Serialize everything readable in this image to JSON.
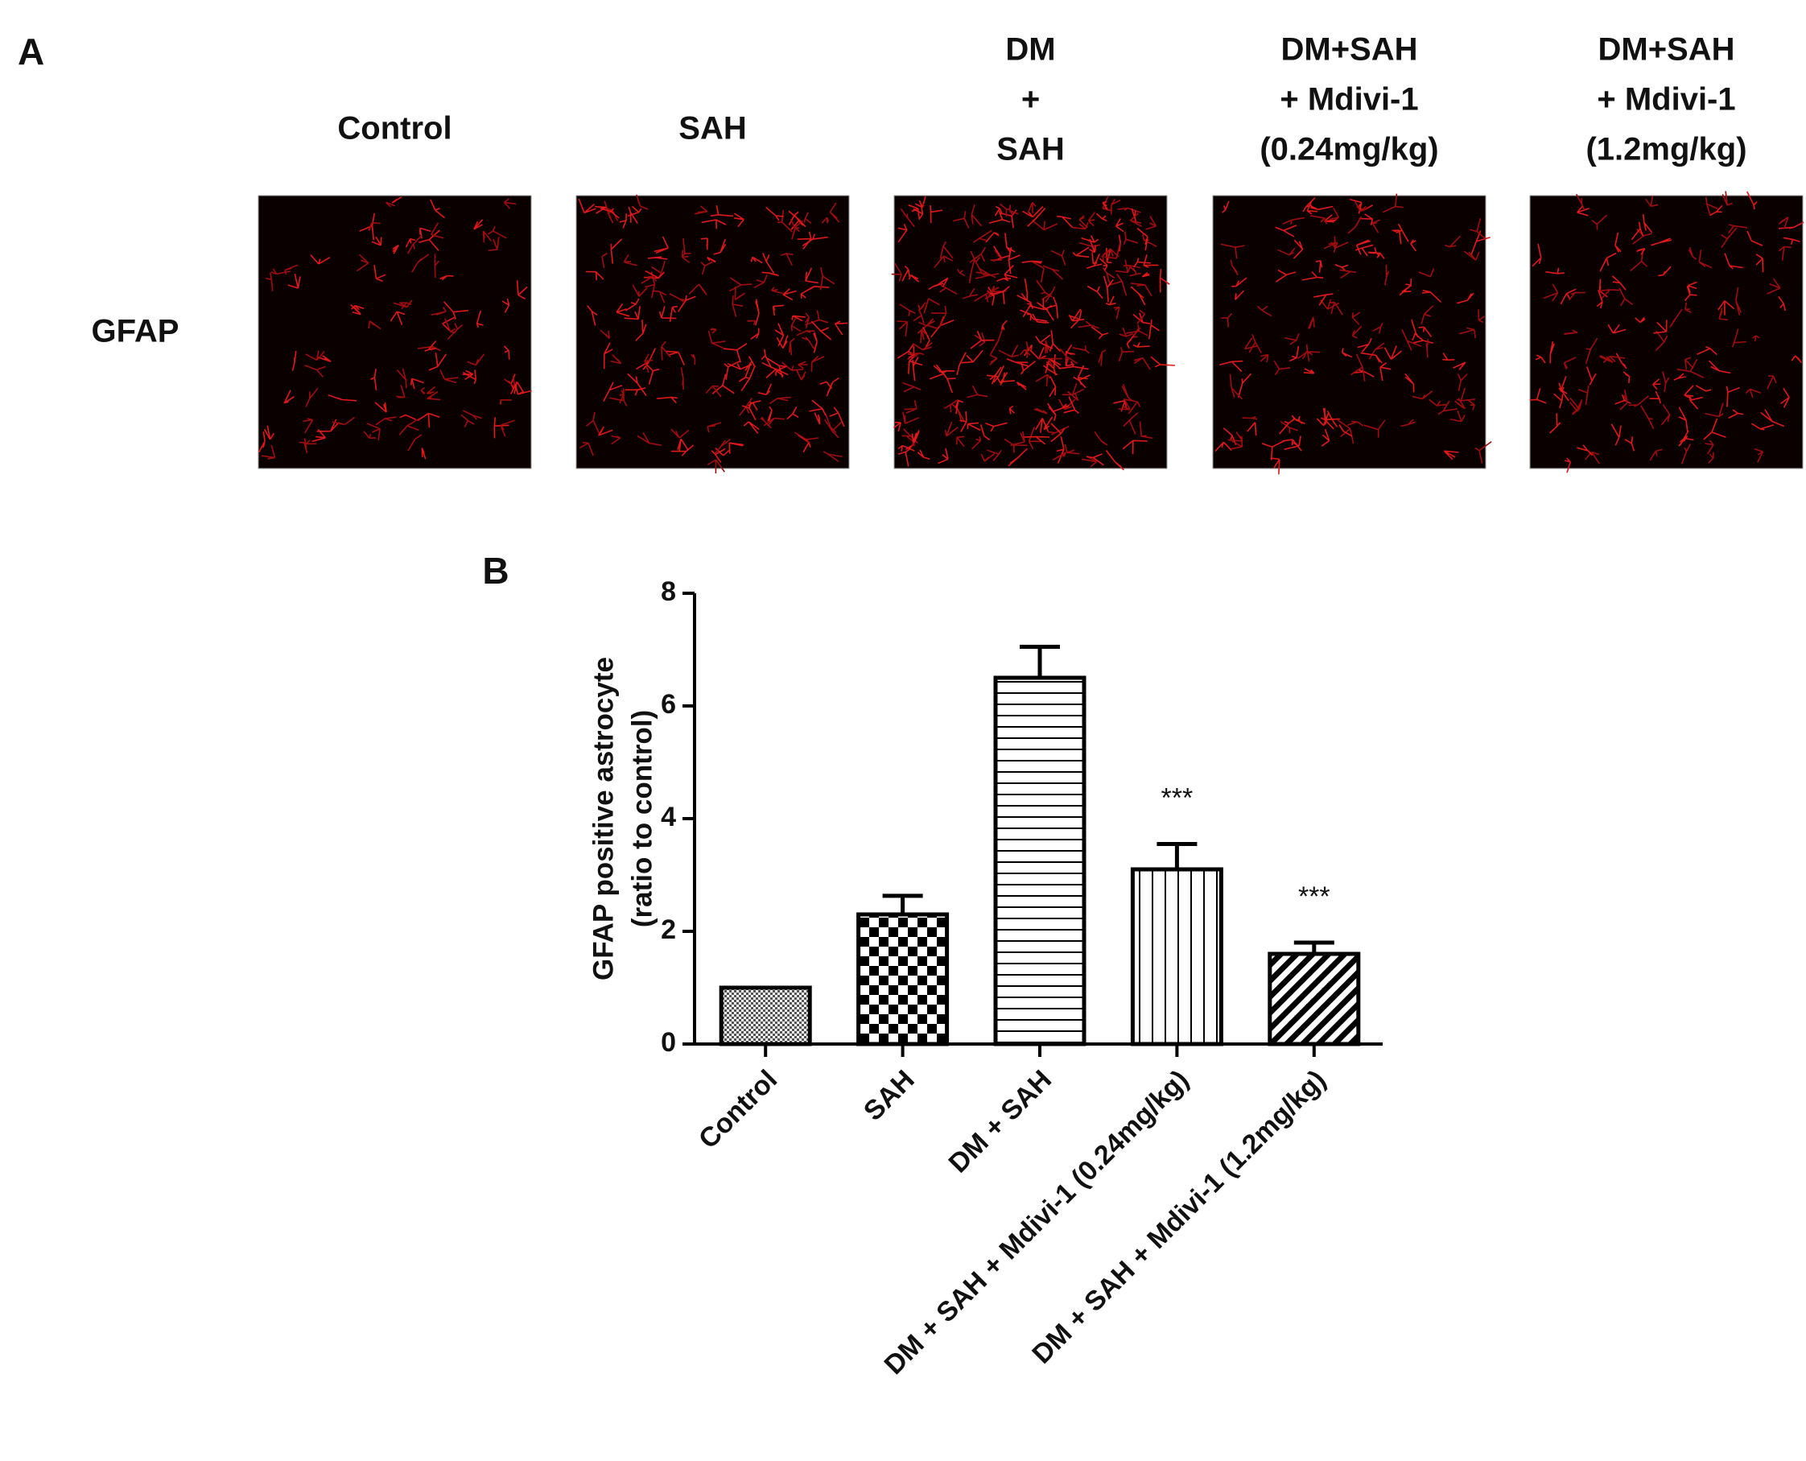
{
  "panel_a": {
    "label": "A",
    "row_label": "GFAP",
    "columns": [
      [
        "Control"
      ],
      [
        "SAH"
      ],
      [
        "DM",
        "+",
        "SAH"
      ],
      [
        "DM+SAH",
        "+ Mdivi-1",
        "(0.24mg/kg)"
      ],
      [
        "DM+SAH",
        "+ Mdivi-1",
        "(1.2mg/kg)"
      ]
    ]
  },
  "chart_data": {
    "type": "bar",
    "panel_label": "B",
    "ylabel": [
      "GFAP positive astrocyte",
      "(ratio to control)"
    ],
    "categories": [
      "Control",
      "SAH",
      "DM + SAH",
      "DM + SAH + Mdivi-1 (0.24mg/kg)",
      "DM + SAH + Mdivi-1 (1.2mg/kg)"
    ],
    "values": [
      1.0,
      2.3,
      6.5,
      3.1,
      1.6
    ],
    "errors": [
      0,
      0.33,
      0.55,
      0.45,
      0.2
    ],
    "annotations": [
      null,
      null,
      null,
      "***",
      "***"
    ],
    "patterns": [
      "dots",
      "checker",
      "horizontal",
      "vertical",
      "diagonal"
    ],
    "ylim": [
      0,
      8
    ],
    "yticks": [
      0,
      2,
      4,
      6,
      8
    ]
  }
}
